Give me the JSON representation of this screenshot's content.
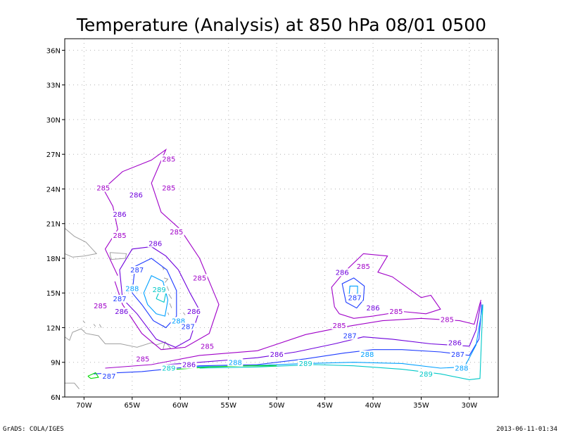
{
  "chart_data": {
    "type": "contour",
    "title": "Temperature (Analysis) at 850 hPa 08/01 0500",
    "xlabel": "",
    "ylabel": "",
    "xlim": [
      -72,
      -27
    ],
    "ylim": [
      6,
      37
    ],
    "x_ticks": [
      {
        "value": -70,
        "label": "70W"
      },
      {
        "value": -65,
        "label": "65W"
      },
      {
        "value": -60,
        "label": "60W"
      },
      {
        "value": -55,
        "label": "55W"
      },
      {
        "value": -50,
        "label": "50W"
      },
      {
        "value": -45,
        "label": "45W"
      },
      {
        "value": -40,
        "label": "40W"
      },
      {
        "value": -35,
        "label": "35W"
      },
      {
        "value": -30,
        "label": "30W"
      }
    ],
    "y_ticks": [
      {
        "value": 6,
        "label": "6N"
      },
      {
        "value": 9,
        "label": "9N"
      },
      {
        "value": 12,
        "label": "12N"
      },
      {
        "value": 15,
        "label": "15N"
      },
      {
        "value": 18,
        "label": "18N"
      },
      {
        "value": 21,
        "label": "21N"
      },
      {
        "value": 24,
        "label": "24N"
      },
      {
        "value": 27,
        "label": "27N"
      },
      {
        "value": 30,
        "label": "30N"
      },
      {
        "value": 33,
        "label": "33N"
      },
      {
        "value": 36,
        "label": "36N"
      }
    ],
    "grid": true,
    "contour_levels": [
      {
        "value": 285,
        "color": "#a000c8"
      },
      {
        "value": 286,
        "color": "#6e00dc"
      },
      {
        "value": 287,
        "color": "#1e3cff"
      },
      {
        "value": 288,
        "color": "#00a0ff"
      },
      {
        "value": 289,
        "color": "#00c8c8"
      },
      {
        "value": 290,
        "color": "#00dc00"
      }
    ],
    "contours": [
      {
        "level": 285,
        "points": [
          [
            -67.8,
            8.5
          ],
          [
            -63,
            8.8
          ],
          [
            -58,
            9.6
          ],
          [
            -52,
            10.0
          ],
          [
            -47,
            11.4
          ],
          [
            -44,
            11.9
          ],
          [
            -42,
            12.2
          ],
          [
            -39,
            12.6
          ],
          [
            -35,
            12.8
          ],
          [
            -31,
            12.6
          ],
          [
            -29.5,
            12.3
          ],
          [
            -28.8,
            14.4
          ]
        ]
      },
      {
        "level": 285,
        "points": [
          [
            -66.5,
            16.5
          ],
          [
            -67.8,
            18.8
          ],
          [
            -66.5,
            20.5
          ],
          [
            -67,
            22.5
          ],
          [
            -68,
            24
          ],
          [
            -66,
            25.5
          ],
          [
            -63,
            26.5
          ],
          [
            -61.5,
            27.4
          ],
          [
            -63,
            24.5
          ],
          [
            -62,
            22
          ],
          [
            -60,
            20.5
          ],
          [
            -58,
            18
          ],
          [
            -57,
            16
          ],
          [
            -56,
            14
          ],
          [
            -57,
            11.5
          ],
          [
            -59.5,
            10.3
          ],
          [
            -62,
            10.1
          ],
          [
            -64,
            11.5
          ],
          [
            -66,
            14
          ],
          [
            -66.8,
            16
          ]
        ]
      },
      {
        "level": 285,
        "points": [
          [
            -44,
            13.8
          ],
          [
            -44.3,
            15.5
          ],
          [
            -43,
            16.8
          ],
          [
            -41,
            18.4
          ],
          [
            -38.5,
            18.2
          ],
          [
            -39.5,
            16.8
          ],
          [
            -38,
            16.4
          ],
          [
            -36,
            15.2
          ],
          [
            -35,
            14.6
          ],
          [
            -34,
            14.8
          ],
          [
            -33,
            13.6
          ],
          [
            -34.5,
            13.2
          ],
          [
            -37,
            13.4
          ],
          [
            -40,
            13.0
          ],
          [
            -42,
            12.8
          ],
          [
            -43.5,
            13.2
          ],
          [
            -44,
            13.8
          ]
        ]
      },
      {
        "level": 286,
        "points": [
          [
            -66,
            14.5
          ],
          [
            -66.3,
            17
          ],
          [
            -65,
            18.8
          ],
          [
            -63,
            19
          ],
          [
            -61.5,
            18.2
          ],
          [
            -60.2,
            17
          ],
          [
            -59,
            15
          ],
          [
            -58,
            13.5
          ],
          [
            -59,
            11
          ],
          [
            -60.5,
            10.3
          ],
          [
            -62.5,
            11
          ],
          [
            -64.5,
            13.2
          ],
          [
            -66,
            14.5
          ]
        ]
      },
      {
        "level": 286,
        "points": [
          [
            -61.5,
            8.8
          ],
          [
            -58,
            9.0
          ],
          [
            -55,
            9.2
          ],
          [
            -52,
            9.4
          ],
          [
            -48,
            9.9
          ],
          [
            -44,
            10.6
          ],
          [
            -41,
            11.2
          ],
          [
            -38,
            11.0
          ],
          [
            -34,
            10.6
          ],
          [
            -30,
            10.4
          ],
          [
            -29.3,
            11.8
          ],
          [
            -28.8,
            14.2
          ]
        ]
      },
      {
        "level": 287,
        "points": [
          [
            -65,
            15
          ],
          [
            -64.7,
            17.3
          ],
          [
            -63,
            18
          ],
          [
            -61.4,
            17
          ],
          [
            -60.4,
            15.2
          ],
          [
            -60.4,
            13
          ],
          [
            -61.5,
            12
          ],
          [
            -62.8,
            12.6
          ],
          [
            -64,
            14
          ],
          [
            -65,
            15
          ]
        ]
      },
      {
        "level": 287,
        "points": [
          [
            -69,
            8.0
          ],
          [
            -64,
            8.2
          ],
          [
            -58,
            8.7
          ],
          [
            -52,
            8.8
          ],
          [
            -47,
            9.3
          ],
          [
            -43,
            9.8
          ],
          [
            -40,
            10.1
          ],
          [
            -37,
            10.1
          ],
          [
            -33,
            9.9
          ],
          [
            -30,
            9.6
          ],
          [
            -29,
            11.0
          ],
          [
            -28.7,
            14.0
          ]
        ]
      },
      {
        "level": 287,
        "points": [
          [
            -42.8,
            14.2
          ],
          [
            -43.2,
            15.8
          ],
          [
            -42,
            16.3
          ],
          [
            -40.9,
            15.6
          ],
          [
            -41,
            14.4
          ],
          [
            -41.7,
            13.7
          ],
          [
            -42.8,
            14.2
          ]
        ]
      },
      {
        "level": 288,
        "points": [
          [
            -63.8,
            15
          ],
          [
            -63,
            16.5
          ],
          [
            -61.8,
            16
          ],
          [
            -61.3,
            14.4
          ],
          [
            -61.6,
            13
          ],
          [
            -62.5,
            13.2
          ],
          [
            -63.4,
            14
          ],
          [
            -63.8,
            15
          ]
        ]
      },
      {
        "level": 288,
        "points": [
          [
            -59,
            8.6
          ],
          [
            -53,
            8.7
          ],
          [
            -47,
            8.9
          ],
          [
            -42,
            9.0
          ],
          [
            -37,
            8.9
          ],
          [
            -33,
            8.5
          ],
          [
            -30.5,
            8.6
          ],
          [
            -29.3,
            10.5
          ],
          [
            -28.6,
            14.0
          ]
        ]
      },
      {
        "level": 288,
        "points": [
          [
            -42.5,
            14.5
          ],
          [
            -42.4,
            15.6
          ],
          [
            -41.6,
            15.6
          ],
          [
            -41.6,
            14.5
          ],
          [
            -42.5,
            14.5
          ]
        ]
      },
      {
        "level": 289,
        "points": [
          [
            -58,
            8.5
          ],
          [
            -52,
            8.6
          ],
          [
            -46,
            8.8
          ],
          [
            -42,
            8.7
          ],
          [
            -37,
            8.4
          ],
          [
            -33,
            8.0
          ],
          [
            -30,
            7.5
          ],
          [
            -28.9,
            7.6
          ],
          [
            -28.6,
            14.0
          ]
        ]
      },
      {
        "level": 289,
        "points": [
          [
            -62.5,
            14.5
          ],
          [
            -62,
            15.5
          ],
          [
            -61.5,
            15.0
          ],
          [
            -61.7,
            14.2
          ],
          [
            -62.5,
            14.5
          ]
        ]
      },
      {
        "level": 290,
        "points": [
          [
            -62,
            8.3
          ],
          [
            -57,
            8.6
          ],
          [
            -53,
            8.7
          ],
          [
            -50,
            8.7
          ]
        ]
      },
      {
        "level": 290,
        "points": [
          [
            -69.6,
            7.8
          ],
          [
            -68.8,
            8.1
          ],
          [
            -68.5,
            7.7
          ],
          [
            -69.3,
            7.6
          ],
          [
            -69.6,
            7.8
          ]
        ]
      }
    ],
    "contour_labels": [
      {
        "text": "285",
        "x": -61.2,
        "y": 26.5,
        "level": 285
      },
      {
        "text": "285",
        "x": -68.0,
        "y": 24.0,
        "level": 285
      },
      {
        "text": "285",
        "x": -61.2,
        "y": 24.0,
        "level": 285
      },
      {
        "text": "286",
        "x": -64.6,
        "y": 23.4,
        "level": 286
      },
      {
        "text": "286",
        "x": -66.3,
        "y": 21.7,
        "level": 286
      },
      {
        "text": "285",
        "x": -60.4,
        "y": 20.2,
        "level": 285
      },
      {
        "text": "285",
        "x": -66.3,
        "y": 19.9,
        "level": 285
      },
      {
        "text": "286",
        "x": -62.6,
        "y": 19.2,
        "level": 286
      },
      {
        "text": "287",
        "x": -64.5,
        "y": 16.9,
        "level": 287
      },
      {
        "text": "285",
        "x": -58.0,
        "y": 16.2,
        "level": 285
      },
      {
        "text": "288",
        "x": -65.0,
        "y": 15.3,
        "level": 288
      },
      {
        "text": "289",
        "x": -62.2,
        "y": 15.2,
        "level": 289
      },
      {
        "text": "287",
        "x": -66.3,
        "y": 14.4,
        "level": 287
      },
      {
        "text": "285",
        "x": -68.3,
        "y": 13.8,
        "level": 285
      },
      {
        "text": "286",
        "x": -66.1,
        "y": 13.3,
        "level": 286
      },
      {
        "text": "286",
        "x": -58.6,
        "y": 13.3,
        "level": 286
      },
      {
        "text": "288",
        "x": -60.2,
        "y": 12.5,
        "level": 288
      },
      {
        "text": "287",
        "x": -59.2,
        "y": 12.0,
        "level": 287
      },
      {
        "text": "285",
        "x": -57.2,
        "y": 10.3,
        "level": 285
      },
      {
        "text": "285",
        "x": -63.9,
        "y": 9.2,
        "level": 285
      },
      {
        "text": "289",
        "x": -61.2,
        "y": 8.4,
        "level": 289
      },
      {
        "text": "286",
        "x": -59.1,
        "y": 8.7,
        "level": 286
      },
      {
        "text": "287",
        "x": -67.4,
        "y": 7.7,
        "level": 287
      },
      {
        "text": "288",
        "x": -54.3,
        "y": 8.9,
        "level": 288
      },
      {
        "text": "286",
        "x": -50.0,
        "y": 9.6,
        "level": 286
      },
      {
        "text": "289",
        "x": -47.0,
        "y": 8.8,
        "level": 289
      },
      {
        "text": "285",
        "x": -43.5,
        "y": 12.1,
        "level": 285
      },
      {
        "text": "287",
        "x": -42.4,
        "y": 11.2,
        "level": 287
      },
      {
        "text": "288",
        "x": -40.6,
        "y": 9.6,
        "level": 288
      },
      {
        "text": "286",
        "x": -43.2,
        "y": 16.7,
        "level": 286
      },
      {
        "text": "285",
        "x": -41.0,
        "y": 17.2,
        "level": 285
      },
      {
        "text": "287",
        "x": -41.9,
        "y": 14.5,
        "level": 287
      },
      {
        "text": "286",
        "x": -40.0,
        "y": 13.6,
        "level": 286
      },
      {
        "text": "285",
        "x": -37.6,
        "y": 13.3,
        "level": 285
      },
      {
        "text": "285",
        "x": -32.3,
        "y": 12.6,
        "level": 285
      },
      {
        "text": "286",
        "x": -31.5,
        "y": 10.6,
        "level": 286
      },
      {
        "text": "287",
        "x": -31.2,
        "y": 9.6,
        "level": 287
      },
      {
        "text": "288",
        "x": -30.8,
        "y": 8.4,
        "level": 288
      },
      {
        "text": "289",
        "x": -34.5,
        "y": 7.9,
        "level": 289
      }
    ]
  },
  "footer": {
    "left": "GrADS: COLA/IGES",
    "right": "2013-06-11-01:34"
  }
}
